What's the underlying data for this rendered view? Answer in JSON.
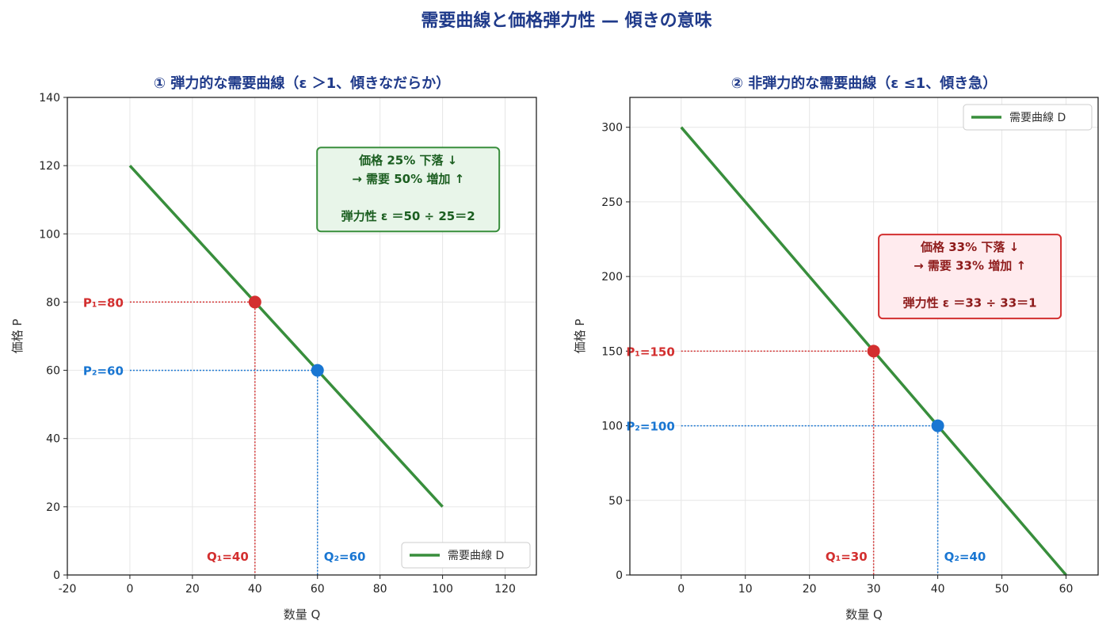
{
  "suptitle": "需要曲線と価格弾力性 — 傾きの意味",
  "colors": {
    "curve": "#388e3c",
    "red": "#d32f2f",
    "blue": "#1976d2",
    "title": "#1f3a8a",
    "grid": "#e6e6e6"
  },
  "chart_data": [
    {
      "type": "line",
      "title": "① 弾力的な需要曲線（ε ＞1、傾きなだらか）",
      "xlabel": "数量 Q",
      "ylabel": "価格 P",
      "xlim": [
        -20,
        130
      ],
      "ylim": [
        0,
        140
      ],
      "xticks": [
        -20,
        0,
        20,
        40,
        60,
        80,
        100,
        120
      ],
      "yticks": [
        0,
        20,
        40,
        60,
        80,
        100,
        120,
        140
      ],
      "grid": true,
      "legend_position": "bottom-right",
      "series": [
        {
          "name": "需要曲線 D",
          "x": [
            0,
            100
          ],
          "y": [
            120,
            20
          ]
        }
      ],
      "points": [
        {
          "x": 40,
          "y": 80,
          "color": "red",
          "p_label": "P₁=80",
          "q_label": "Q₁=40"
        },
        {
          "x": 60,
          "y": 60,
          "color": "blue",
          "p_label": "P₂=60",
          "q_label": "Q₂=60"
        }
      ],
      "annotation": {
        "lines": [
          "価格 25% 下落 ↓",
          "→ 需要 50% 増加 ↑",
          "",
          "弾力性 ε ＝50 ÷ 25＝2"
        ],
        "theme": "green",
        "anchor_x": 89,
        "anchor_y": 113
      }
    },
    {
      "type": "line",
      "title": "② 非弾力的な需要曲線（ε ≤1、傾き急）",
      "xlabel": "数量 Q",
      "ylabel": "価格 P",
      "xlim": [
        -8,
        65
      ],
      "ylim": [
        0,
        320
      ],
      "xticks": [
        0,
        10,
        20,
        30,
        40,
        50,
        60
      ],
      "yticks": [
        0,
        50,
        100,
        150,
        200,
        250,
        300
      ],
      "grid": true,
      "legend_position": "top-right",
      "series": [
        {
          "name": "需要曲線 D",
          "x": [
            0,
            60
          ],
          "y": [
            300,
            0
          ]
        }
      ],
      "points": [
        {
          "x": 30,
          "y": 150,
          "color": "red",
          "p_label": "P₁=150",
          "q_label": "Q₁=30"
        },
        {
          "x": 40,
          "y": 100,
          "color": "blue",
          "p_label": "P₂=100",
          "q_label": "Q₂=40"
        }
      ],
      "annotation": {
        "lines": [
          "価格 33% 下落 ↓",
          "→ 需要 33% 増加 ↑",
          "",
          "弾力性 ε ＝33 ÷ 33＝1"
        ],
        "theme": "red",
        "anchor_x": 45,
        "anchor_y": 200
      }
    }
  ]
}
